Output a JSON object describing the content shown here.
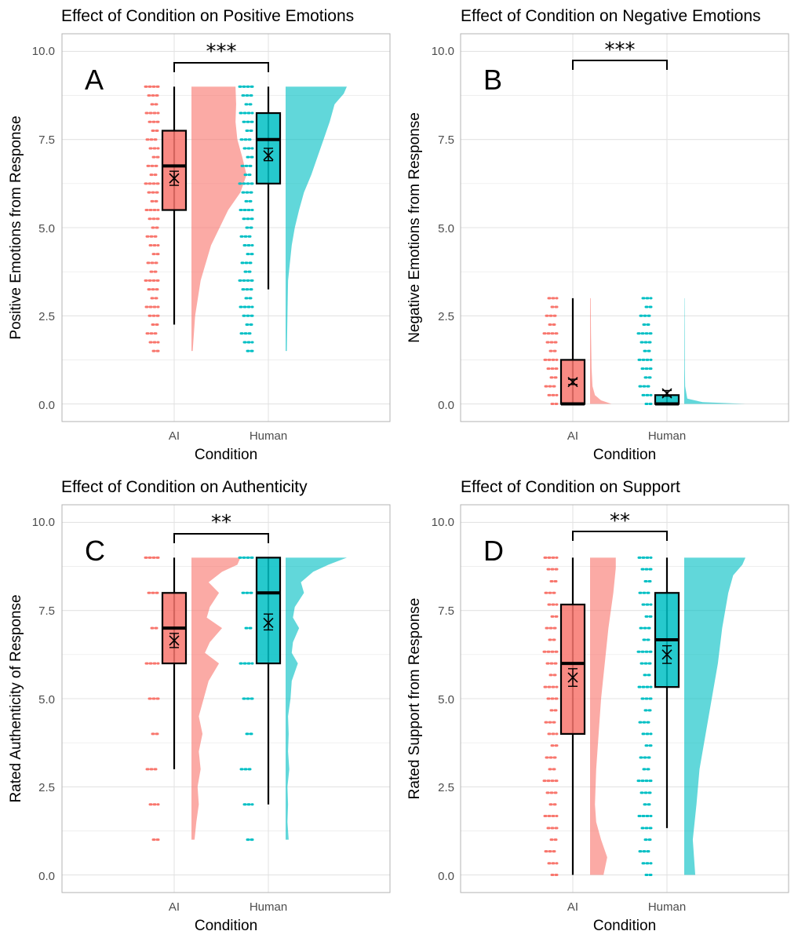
{
  "colors": {
    "ai": "#F8766D",
    "human": "#00BFC4",
    "grid": "#e3e3e3",
    "frame": "#b3b3b3"
  },
  "chart_data": [
    {
      "type": "raincloud",
      "letter": "A",
      "title": "Effect of Condition on Positive Emotions",
      "xlabel": "Condition",
      "ylabel": "Positive Emotions from Response",
      "ylim": [
        -0.5,
        10.5
      ],
      "yticks": [
        "0.0",
        "2.5",
        "5.0",
        "7.5",
        "10.0"
      ],
      "categories": [
        "AI",
        "Human"
      ],
      "significance": "***",
      "series": [
        {
          "condition": "AI",
          "box": {
            "lower_whisker": 2.25,
            "q1": 5.5,
            "median": 6.75,
            "q3": 7.75,
            "upper_whisker": 9.0
          },
          "mean": 6.4,
          "ci": [
            6.2,
            6.6
          ],
          "points": [
            1.5,
            1.75,
            2.0,
            2.25,
            2.5,
            2.75,
            3.0,
            3.25,
            3.5,
            3.75,
            4.0,
            4.25,
            4.5,
            4.75,
            5.0,
            5.25,
            5.5,
            5.75,
            6.0,
            6.25,
            6.5,
            6.75,
            7.0,
            7.25,
            7.5,
            7.75,
            8.0,
            8.25,
            8.5,
            8.75,
            9.0
          ],
          "density": [
            [
              1.5,
              0.02
            ],
            [
              2.5,
              0.06
            ],
            [
              3.5,
              0.15
            ],
            [
              4.5,
              0.32
            ],
            [
              5.5,
              0.6
            ],
            [
              6.0,
              0.8
            ],
            [
              6.5,
              0.9
            ],
            [
              7.0,
              0.83
            ],
            [
              7.5,
              0.75
            ],
            [
              8.0,
              0.72
            ],
            [
              8.5,
              0.73
            ],
            [
              9.0,
              0.72
            ]
          ]
        },
        {
          "condition": "Human",
          "box": {
            "lower_whisker": 3.25,
            "q1": 6.25,
            "median": 7.5,
            "q3": 8.25,
            "upper_whisker": 9.0
          },
          "mean": 7.05,
          "ci": [
            6.9,
            7.25
          ],
          "points": [
            1.5,
            1.75,
            2.0,
            2.25,
            2.5,
            2.75,
            3.0,
            3.25,
            3.5,
            3.75,
            4.0,
            4.25,
            4.5,
            4.75,
            5.0,
            5.25,
            5.5,
            5.75,
            6.0,
            6.25,
            6.5,
            6.75,
            7.0,
            7.25,
            7.5,
            7.75,
            8.0,
            8.25,
            8.5,
            8.75,
            9.0
          ],
          "density": [
            [
              1.5,
              0.02
            ],
            [
              2.5,
              0.03
            ],
            [
              3.5,
              0.04
            ],
            [
              4.5,
              0.1
            ],
            [
              5.0,
              0.15
            ],
            [
              5.5,
              0.22
            ],
            [
              6.0,
              0.3
            ],
            [
              6.5,
              0.42
            ],
            [
              7.0,
              0.52
            ],
            [
              7.5,
              0.62
            ],
            [
              8.0,
              0.72
            ],
            [
              8.5,
              0.8
            ],
            [
              8.8,
              0.95
            ],
            [
              9.0,
              1.0
            ]
          ]
        }
      ]
    },
    {
      "type": "raincloud",
      "letter": "B",
      "title": "Effect of Condition on Negative Emotions",
      "xlabel": "Condition",
      "ylabel": "Negative Emotions from Response",
      "ylim": [
        -0.5,
        10.5
      ],
      "yticks": [
        "0.0",
        "2.5",
        "5.0",
        "7.5",
        "10.0"
      ],
      "categories": [
        "AI",
        "Human"
      ],
      "significance": "***",
      "series": [
        {
          "condition": "AI",
          "box": {
            "lower_whisker": 0.0,
            "q1": 0.0,
            "median": 0.0,
            "q3": 1.25,
            "upper_whisker": 3.0
          },
          "mean": 0.62,
          "ci": [
            0.55,
            0.7
          ],
          "points": [
            0.0,
            0.25,
            0.5,
            0.75,
            1.0,
            1.25,
            1.5,
            1.75,
            2.0,
            2.25,
            2.5,
            2.75,
            3.0
          ],
          "density": [
            [
              0.0,
              0.35
            ],
            [
              0.1,
              0.18
            ],
            [
              0.25,
              0.08
            ],
            [
              0.5,
              0.04
            ],
            [
              1.0,
              0.025
            ],
            [
              2.0,
              0.015
            ],
            [
              3.0,
              0.01
            ]
          ]
        },
        {
          "condition": "Human",
          "box": {
            "lower_whisker": 0.0,
            "q1": 0.0,
            "median": 0.0,
            "q3": 0.25,
            "upper_whisker": 0.25
          },
          "mean": 0.3,
          "ci": [
            0.22,
            0.38
          ],
          "points": [
            0.0,
            0.25,
            0.5,
            0.75,
            1.0,
            1.25,
            1.5,
            1.75,
            2.0,
            2.25,
            2.5,
            2.75,
            3.0
          ],
          "density": [
            [
              0.0,
              1.0
            ],
            [
              0.05,
              0.3
            ],
            [
              0.15,
              0.05
            ],
            [
              0.5,
              0.015
            ],
            [
              1.0,
              0.01
            ],
            [
              2.0,
              0.008
            ],
            [
              3.0,
              0.005
            ]
          ]
        }
      ]
    },
    {
      "type": "raincloud",
      "letter": "C",
      "title": "Effect of Condition on Authenticity",
      "xlabel": "Condition",
      "ylabel": "Rated Authenticity of Response",
      "ylim": [
        -0.5,
        10.5
      ],
      "yticks": [
        "0.0",
        "2.5",
        "5.0",
        "7.5",
        "10.0"
      ],
      "categories": [
        "AI",
        "Human"
      ],
      "significance": "**",
      "series": [
        {
          "condition": "AI",
          "box": {
            "lower_whisker": 3.0,
            "q1": 6.0,
            "median": 7.0,
            "q3": 8.0,
            "upper_whisker": 9.0
          },
          "mean": 6.65,
          "ci": [
            6.45,
            6.85
          ],
          "points": [
            1,
            2,
            3,
            4,
            5,
            6,
            7,
            8,
            9
          ],
          "density": [
            [
              1.0,
              0.05
            ],
            [
              1.5,
              0.08
            ],
            [
              2.0,
              0.12
            ],
            [
              2.5,
              0.1
            ],
            [
              3.0,
              0.15
            ],
            [
              3.5,
              0.12
            ],
            [
              4.0,
              0.18
            ],
            [
              4.5,
              0.12
            ],
            [
              5.0,
              0.2
            ],
            [
              5.5,
              0.28
            ],
            [
              6.0,
              0.45
            ],
            [
              6.3,
              0.22
            ],
            [
              6.6,
              0.3
            ],
            [
              7.0,
              0.5
            ],
            [
              7.3,
              0.25
            ],
            [
              7.6,
              0.3
            ],
            [
              8.0,
              0.45
            ],
            [
              8.3,
              0.28
            ],
            [
              8.6,
              0.5
            ],
            [
              8.8,
              0.75
            ],
            [
              9.0,
              0.8
            ]
          ]
        },
        {
          "condition": "Human",
          "box": {
            "lower_whisker": 2.0,
            "q1": 6.0,
            "median": 8.0,
            "q3": 9.0,
            "upper_whisker": 9.0
          },
          "mean": 7.15,
          "ci": [
            6.95,
            7.4
          ],
          "points": [
            1,
            2,
            3,
            4,
            5,
            6,
            7,
            8,
            9
          ],
          "density": [
            [
              1.0,
              0.05
            ],
            [
              1.5,
              0.03
            ],
            [
              2.0,
              0.04
            ],
            [
              2.5,
              0.03
            ],
            [
              3.0,
              0.06
            ],
            [
              3.5,
              0.04
            ],
            [
              4.0,
              0.05
            ],
            [
              4.5,
              0.04
            ],
            [
              5.0,
              0.08
            ],
            [
              5.5,
              0.1
            ],
            [
              6.0,
              0.2
            ],
            [
              6.3,
              0.1
            ],
            [
              6.6,
              0.12
            ],
            [
              7.0,
              0.22
            ],
            [
              7.3,
              0.12
            ],
            [
              7.6,
              0.15
            ],
            [
              8.0,
              0.3
            ],
            [
              8.3,
              0.25
            ],
            [
              8.6,
              0.45
            ],
            [
              8.8,
              0.7
            ],
            [
              9.0,
              1.0
            ]
          ]
        }
      ]
    },
    {
      "type": "raincloud",
      "letter": "D",
      "title": "Effect of Condition on Support",
      "xlabel": "Condition",
      "ylabel": "Rated Support from Response",
      "ylim": [
        -0.5,
        10.5
      ],
      "yticks": [
        "0.0",
        "2.5",
        "5.0",
        "7.5",
        "10.0"
      ],
      "categories": [
        "AI",
        "Human"
      ],
      "significance": "**",
      "series": [
        {
          "condition": "AI",
          "box": {
            "lower_whisker": 0.0,
            "q1": 4.0,
            "median": 6.0,
            "q3": 7.67,
            "upper_whisker": 9.0
          },
          "mean": 5.6,
          "ci": [
            5.35,
            5.85
          ],
          "points": [
            0.0,
            0.33,
            0.67,
            1.0,
            1.33,
            1.67,
            2.0,
            2.33,
            2.67,
            3.0,
            3.33,
            3.67,
            4.0,
            4.33,
            4.67,
            5.0,
            5.33,
            5.67,
            6.0,
            6.33,
            6.67,
            7.0,
            7.33,
            7.67,
            8.0,
            8.33,
            8.67,
            9.0
          ],
          "density": [
            [
              0.0,
              0.22
            ],
            [
              0.5,
              0.28
            ],
            [
              1.0,
              0.18
            ],
            [
              1.5,
              0.1
            ],
            [
              2.0,
              0.08
            ],
            [
              3.0,
              0.1
            ],
            [
              4.0,
              0.14
            ],
            [
              5.0,
              0.18
            ],
            [
              6.0,
              0.24
            ],
            [
              7.0,
              0.3
            ],
            [
              8.0,
              0.38
            ],
            [
              8.7,
              0.42
            ],
            [
              9.0,
              0.42
            ]
          ]
        },
        {
          "condition": "Human",
          "box": {
            "lower_whisker": 1.33,
            "q1": 5.33,
            "median": 6.67,
            "q3": 8.0,
            "upper_whisker": 9.0
          },
          "mean": 6.25,
          "ci": [
            6.0,
            6.5
          ],
          "points": [
            0.0,
            0.33,
            0.67,
            1.0,
            1.33,
            1.67,
            2.0,
            2.33,
            2.67,
            3.0,
            3.33,
            3.67,
            4.0,
            4.33,
            4.67,
            5.0,
            5.33,
            5.67,
            6.0,
            6.33,
            6.67,
            7.0,
            7.33,
            7.67,
            8.0,
            8.33,
            8.67,
            9.0
          ],
          "density": [
            [
              0.0,
              0.18
            ],
            [
              1.0,
              0.14
            ],
            [
              2.0,
              0.2
            ],
            [
              3.0,
              0.25
            ],
            [
              4.0,
              0.35
            ],
            [
              5.0,
              0.45
            ],
            [
              6.0,
              0.55
            ],
            [
              7.0,
              0.62
            ],
            [
              8.0,
              0.72
            ],
            [
              8.5,
              0.8
            ],
            [
              8.8,
              0.95
            ],
            [
              9.0,
              1.0
            ]
          ]
        }
      ]
    }
  ]
}
